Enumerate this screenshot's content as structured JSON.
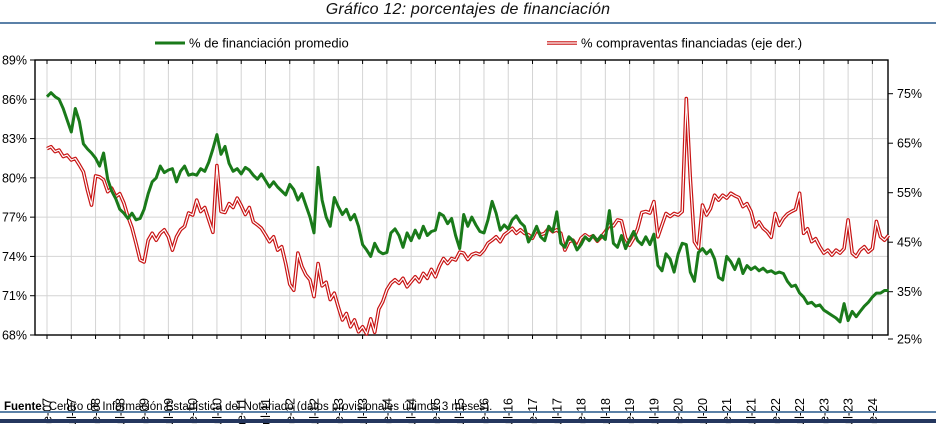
{
  "title": "Gráfico 12: porcentajes de financiación",
  "source_note": {
    "prefix": "Fuente:",
    "text": " Centro de Información Estadística del Notariado (datos provisionales últimos 3 meses)."
  },
  "legend": [
    {
      "label": "% de financiación promedio",
      "color": "#1a7a1a",
      "style": "solid"
    },
    {
      "label": "% compraventas financiadas (eje der.)",
      "color": "#c81414",
      "style": "double"
    }
  ],
  "colors": {
    "green_series": "#1a7a1a",
    "red_series": "#c81414",
    "red_series_core": "#ffffff",
    "gridline": "#d4d4d4",
    "axis": "#000000",
    "rule_blue": "#5b81a8",
    "bottom_bar_navy": "#24365e"
  },
  "chart_data": {
    "type": "line",
    "title": "Gráfico 12: porcentajes de financiación",
    "x_unit": "month",
    "x_range": [
      "ene-07",
      "may-24"
    ],
    "grid": true,
    "legend_position": "top",
    "x_tick_labels": [
      "ene-07",
      "jul-07",
      "ene-08",
      "jul-08",
      "ene-09",
      "jul-09",
      "ene-10",
      "jul-10",
      "ene-11",
      "jul-11",
      "ene-12",
      "jul-12",
      "ene-13",
      "jul-13",
      "ene-14",
      "jul-14",
      "ene-15",
      "jul-15",
      "ene-16",
      "jul-16",
      "ene-17",
      "jul-17",
      "ene-18",
      "jul-18",
      "ene-19",
      "jul-19",
      "ene-20",
      "jul-20",
      "ene-21",
      "jul-21",
      "ene-22",
      "jul-22",
      "ene-23",
      "jul-23",
      "ene-24"
    ],
    "left_axis": {
      "min": 68,
      "max": 89,
      "tick_step": 3,
      "tick_labels": [
        "89%",
        "86%",
        "83%",
        "80%",
        "77%",
        "74%",
        "71%",
        "68%"
      ]
    },
    "right_axis": {
      "ticks": [
        75,
        65,
        55,
        45,
        35,
        25
      ],
      "tick_labels": [
        "75%",
        "65%",
        "55%",
        "45%",
        "35%",
        "25%"
      ],
      "note": "eje derecho"
    },
    "series": [
      {
        "name": "% de financiación promedio",
        "axis": "left",
        "color": "#1a7a1a",
        "values": [
          86.2,
          86.5,
          86.2,
          86.0,
          85.3,
          84.4,
          83.5,
          85.3,
          84.3,
          82.6,
          82.2,
          81.9,
          81.5,
          80.9,
          81.9,
          79.9,
          79.0,
          78.4,
          77.6,
          77.3,
          76.9,
          77.3,
          76.8,
          76.9,
          77.6,
          78.8,
          79.7,
          80.0,
          80.9,
          80.4,
          80.6,
          80.7,
          79.7,
          80.5,
          80.9,
          80.2,
          80.3,
          80.2,
          80.7,
          80.5,
          81.2,
          82.2,
          83.3,
          81.8,
          82.4,
          81.1,
          80.5,
          80.7,
          80.3,
          80.8,
          80.6,
          80.2,
          79.9,
          80.3,
          79.8,
          79.3,
          79.7,
          79.3,
          79.0,
          78.7,
          79.5,
          79.1,
          78.3,
          78.8,
          77.9,
          77.0,
          75.8,
          80.8,
          78.3,
          77.0,
          76.3,
          78.5,
          77.8,
          77.2,
          77.6,
          76.8,
          77.2,
          76.3,
          74.9,
          74.5,
          74.0,
          75.0,
          74.4,
          74.2,
          74.3,
          75.8,
          76.1,
          75.6,
          74.7,
          75.8,
          75.2,
          76.0,
          75.4,
          76.3,
          75.6,
          75.9,
          76.0,
          77.3,
          77.1,
          76.5,
          76.9,
          75.6,
          74.6,
          77.2,
          76.3,
          77.0,
          76.4,
          75.9,
          75.8,
          76.8,
          78.2,
          77.3,
          76.0,
          76.4,
          76.1,
          76.8,
          77.1,
          76.6,
          76.3,
          75.1,
          75.6,
          76.3,
          75.5,
          75.2,
          76.3,
          75.9,
          77.4,
          75.0,
          74.7,
          75.5,
          75.2,
          74.5,
          74.9,
          75.5,
          75.2,
          75.6,
          75.2,
          75.6,
          75.3,
          77.5,
          75.0,
          74.7,
          75.6,
          74.6,
          75.3,
          75.9,
          75.2,
          74.9,
          75.5,
          74.9,
          75.7,
          73.3,
          72.9,
          74.2,
          73.8,
          72.8,
          74.2,
          75.0,
          74.9,
          72.8,
          72.1,
          74.3,
          74.6,
          74.2,
          74.5,
          73.8,
          72.4,
          72.2,
          74.0,
          73.6,
          73.0,
          73.8,
          72.7,
          73.3,
          73.0,
          73.2,
          72.9,
          73.1,
          72.8,
          72.9,
          72.7,
          72.8,
          72.7,
          72.1,
          71.7,
          71.8,
          71.2,
          70.9,
          70.4,
          70.5,
          70.2,
          70.3,
          69.9,
          69.7,
          69.5,
          69.3,
          69.0,
          70.4,
          69.1,
          69.8,
          69.4,
          69.8,
          70.2,
          70.5,
          70.9,
          71.2,
          71.2,
          71.4,
          71.4
        ]
      },
      {
        "name": "% compraventas financiadas (eje der.)",
        "axis": "right",
        "color": "#c81414",
        "values": [
          63.9,
          64.3,
          63.3,
          63.6,
          62.3,
          62.6,
          61.6,
          61.9,
          60.6,
          59.2,
          55.5,
          52.5,
          58.4,
          58.2,
          57.6,
          55.2,
          55.9,
          54.2,
          54.8,
          52.9,
          50.2,
          47.9,
          44.8,
          41.4,
          41.0,
          45.4,
          46.8,
          45.4,
          46.8,
          47.5,
          46.1,
          43.4,
          46.1,
          47.5,
          48.2,
          50.9,
          50.5,
          53.5,
          51.2,
          52.0,
          49.5,
          47.0,
          60.5,
          51.2,
          51.0,
          52.8,
          52.0,
          53.9,
          52.4,
          50.6,
          52.0,
          49.1,
          48.5,
          47.8,
          46.5,
          45.1,
          46.1,
          43.4,
          44.1,
          40.7,
          36.5,
          35.3,
          42.8,
          40.1,
          38.4,
          37.4,
          34.0,
          40.7,
          36.2,
          36.9,
          33.4,
          34.7,
          31.9,
          29.3,
          30.6,
          27.9,
          29.3,
          26.9,
          27.9,
          26.5,
          29.5,
          26.8,
          31.5,
          33.0,
          35.4,
          36.7,
          37.4,
          36.7,
          37.7,
          36.0,
          37.0,
          38.0,
          37.0,
          38.7,
          37.7,
          39.5,
          38.0,
          40.2,
          41.7,
          40.7,
          41.7,
          41.4,
          43.0,
          42.8,
          41.5,
          42.5,
          42.8,
          42.5,
          43.4,
          44.8,
          45.4,
          46.1,
          45.1,
          46.5,
          47.1,
          47.8,
          46.8,
          47.5,
          46.8,
          46.5,
          45.8,
          47.5,
          46.5,
          46.8,
          47.8,
          47.1,
          47.5,
          46.8,
          43.4,
          45.1,
          45.4,
          44.1,
          45.8,
          46.5,
          45.9,
          46.3,
          45.2,
          46.1,
          47.1,
          48.5,
          48.3,
          49.5,
          49.3,
          45.8,
          44.4,
          45.8,
          47.8,
          51.0,
          51.2,
          50.9,
          53.2,
          46.1,
          48.5,
          50.8,
          50.2,
          50.8,
          50.5,
          51.2,
          74.0,
          57.9,
          45.1,
          43.8,
          52.5,
          50.5,
          51.8,
          54.5,
          53.5,
          54.5,
          53.9,
          54.9,
          54.4,
          54.0,
          52.2,
          52.8,
          51.2,
          48.1,
          49.1,
          47.8,
          47.1,
          46.0,
          50.8,
          48.4,
          49.8,
          50.7,
          51.2,
          51.6,
          54.9,
          46.8,
          47.7,
          45.1,
          45.7,
          44.1,
          42.8,
          43.4,
          42.4,
          43.4,
          42.8,
          43.7,
          49.5,
          42.8,
          42.1,
          43.4,
          44.1,
          43.0,
          43.7,
          49.2,
          46.1,
          45.4,
          46.4
        ]
      }
    ]
  }
}
